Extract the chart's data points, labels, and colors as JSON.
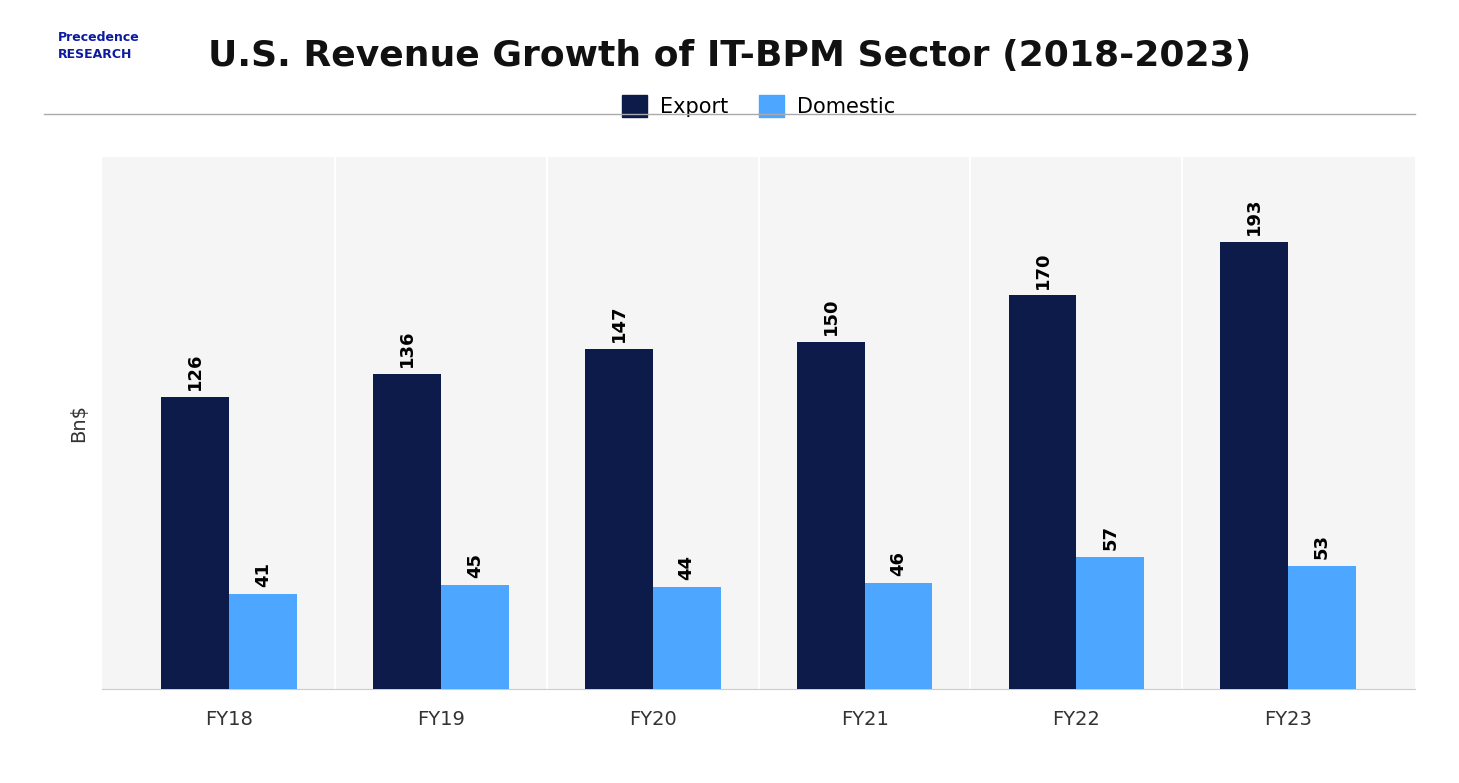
{
  "title": "U.S. Revenue Growth of IT-BPM Sector (2018-2023)",
  "ylabel": "Bn$",
  "categories": [
    "FY18",
    "FY19",
    "FY20",
    "FY21",
    "FY22",
    "FY23"
  ],
  "export_values": [
    126,
    136,
    147,
    150,
    170,
    193
  ],
  "domestic_values": [
    41,
    45,
    44,
    46,
    57,
    53
  ],
  "export_color": "#0d1b4b",
  "domestic_color": "#4da6ff",
  "background_color": "#ffffff",
  "plot_background": "#f5f5f5",
  "title_fontsize": 26,
  "axis_label_fontsize": 14,
  "tick_fontsize": 14,
  "bar_label_fontsize": 13,
  "legend_fontsize": 15,
  "bar_width": 0.32,
  "ylim": [
    0,
    230
  ],
  "grid_color": "#ffffff",
  "legend_export": "Export",
  "legend_domestic": "Domestic"
}
